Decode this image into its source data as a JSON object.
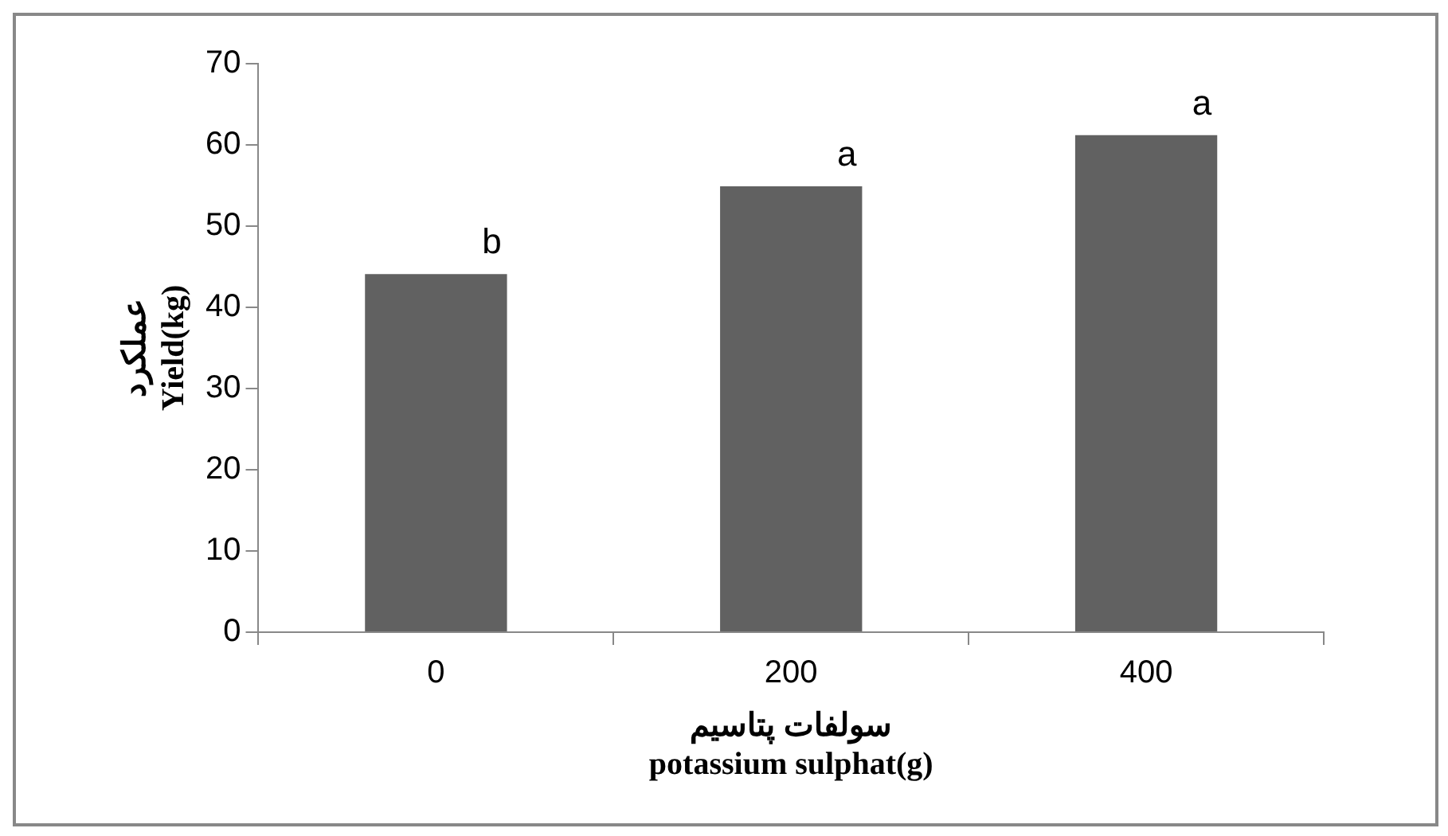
{
  "chart_data": {
    "type": "bar",
    "xlabel": "سولفات پتاسیم\npotassium sulphat(g)",
    "ylabel": "عملکرد\nYield(kg)",
    "categories": [
      "0",
      "200",
      "400"
    ],
    "values": [
      44.1,
      54.9,
      61.2
    ],
    "color": "#616161",
    "ylim": [
      0,
      70
    ],
    "yticks": [
      0,
      10,
      20,
      30,
      40,
      50,
      60,
      70
    ],
    "grid": false,
    "legend": false,
    "annotations": [
      {
        "text": "b",
        "x": "0",
        "y": 44.1
      },
      {
        "text": "a",
        "x": "200",
        "y": 54.9
      },
      {
        "text": "a",
        "x": "400",
        "y": 61.2
      }
    ]
  }
}
